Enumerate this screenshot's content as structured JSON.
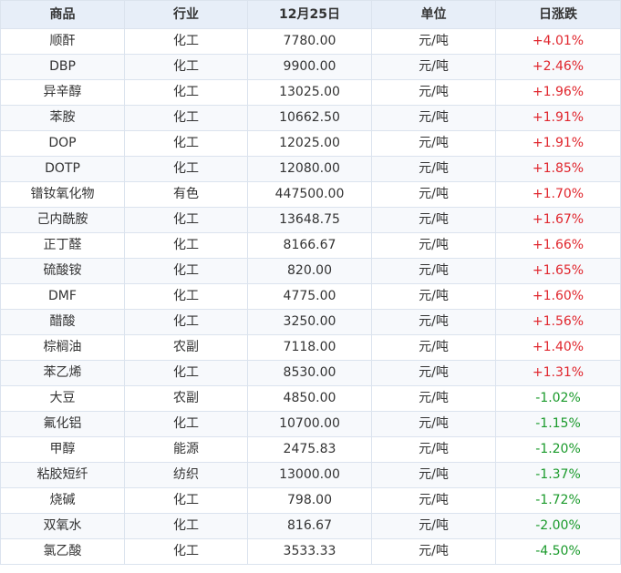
{
  "headers": [
    "商品",
    "行业",
    "12月25日",
    "单位",
    "日涨跌"
  ],
  "colors": {
    "up": "#e0262d",
    "down": "#1a9a2b"
  },
  "rows": [
    {
      "name": "顺酐",
      "industry": "化工",
      "price": "7780.00",
      "unit": "元/吨",
      "change": "+4.01%",
      "dir": "up"
    },
    {
      "name": "DBP",
      "industry": "化工",
      "price": "9900.00",
      "unit": "元/吨",
      "change": "+2.46%",
      "dir": "up"
    },
    {
      "name": "异辛醇",
      "industry": "化工",
      "price": "13025.00",
      "unit": "元/吨",
      "change": "+1.96%",
      "dir": "up"
    },
    {
      "name": "苯胺",
      "industry": "化工",
      "price": "10662.50",
      "unit": "元/吨",
      "change": "+1.91%",
      "dir": "up"
    },
    {
      "name": "DOP",
      "industry": "化工",
      "price": "12025.00",
      "unit": "元/吨",
      "change": "+1.91%",
      "dir": "up"
    },
    {
      "name": "DOTP",
      "industry": "化工",
      "price": "12080.00",
      "unit": "元/吨",
      "change": "+1.85%",
      "dir": "up"
    },
    {
      "name": "镨钕氧化物",
      "industry": "有色",
      "price": "447500.00",
      "unit": "元/吨",
      "change": "+1.70%",
      "dir": "up"
    },
    {
      "name": "己内酰胺",
      "industry": "化工",
      "price": "13648.75",
      "unit": "元/吨",
      "change": "+1.67%",
      "dir": "up"
    },
    {
      "name": "正丁醛",
      "industry": "化工",
      "price": "8166.67",
      "unit": "元/吨",
      "change": "+1.66%",
      "dir": "up"
    },
    {
      "name": "硫酸铵",
      "industry": "化工",
      "price": "820.00",
      "unit": "元/吨",
      "change": "+1.65%",
      "dir": "up"
    },
    {
      "name": "DMF",
      "industry": "化工",
      "price": "4775.00",
      "unit": "元/吨",
      "change": "+1.60%",
      "dir": "up"
    },
    {
      "name": "醋酸",
      "industry": "化工",
      "price": "3250.00",
      "unit": "元/吨",
      "change": "+1.56%",
      "dir": "up"
    },
    {
      "name": "棕榈油",
      "industry": "农副",
      "price": "7118.00",
      "unit": "元/吨",
      "change": "+1.40%",
      "dir": "up"
    },
    {
      "name": "苯乙烯",
      "industry": "化工",
      "price": "8530.00",
      "unit": "元/吨",
      "change": "+1.31%",
      "dir": "up"
    },
    {
      "name": "大豆",
      "industry": "农副",
      "price": "4850.00",
      "unit": "元/吨",
      "change": "-1.02%",
      "dir": "down"
    },
    {
      "name": "氟化铝",
      "industry": "化工",
      "price": "10700.00",
      "unit": "元/吨",
      "change": "-1.15%",
      "dir": "down"
    },
    {
      "name": "甲醇",
      "industry": "能源",
      "price": "2475.83",
      "unit": "元/吨",
      "change": "-1.20%",
      "dir": "down"
    },
    {
      "name": "粘胶短纤",
      "industry": "纺织",
      "price": "13000.00",
      "unit": "元/吨",
      "change": "-1.37%",
      "dir": "down"
    },
    {
      "name": "烧碱",
      "industry": "化工",
      "price": "798.00",
      "unit": "元/吨",
      "change": "-1.72%",
      "dir": "down"
    },
    {
      "name": "双氧水",
      "industry": "化工",
      "price": "816.67",
      "unit": "元/吨",
      "change": "-2.00%",
      "dir": "down"
    },
    {
      "name": "氯乙酸",
      "industry": "化工",
      "price": "3533.33",
      "unit": "元/吨",
      "change": "-4.50%",
      "dir": "down"
    }
  ]
}
